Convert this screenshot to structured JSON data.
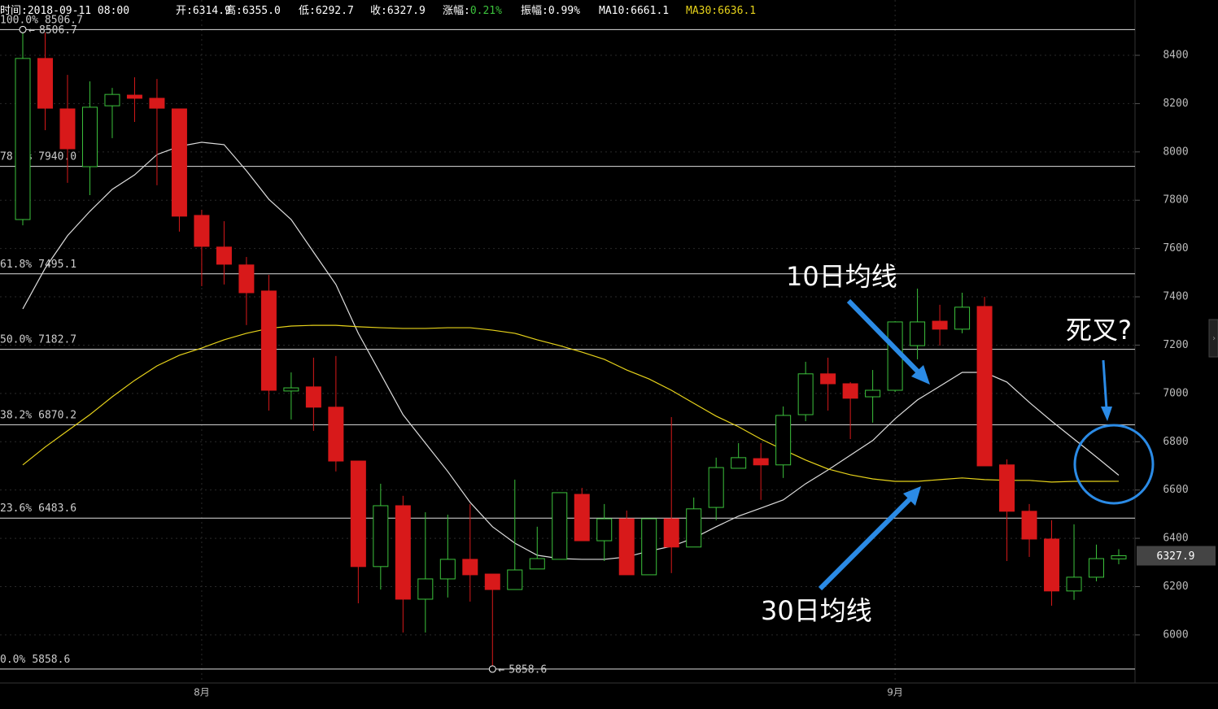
{
  "chart_data": {
    "type": "candlestick",
    "header": [
      {
        "label": "时间:",
        "value": "2018-09-11 08:00"
      },
      {
        "label": "开:",
        "value": "6314.9"
      },
      {
        "label": "高:",
        "value": "6355.0"
      },
      {
        "label": "低:",
        "value": "6292.7"
      },
      {
        "label": "收:",
        "value": "6327.9"
      },
      {
        "label": "涨幅:",
        "value": "0.21%"
      },
      {
        "label": "振幅:",
        "value": "0.99%"
      },
      {
        "label": "MA10:",
        "value": "6661.1"
      },
      {
        "label": "MA30:",
        "value": "6636.1"
      }
    ],
    "categories": [
      null,
      null,
      null,
      null,
      null,
      null,
      null,
      null,
      "8月",
      null,
      null,
      null,
      null,
      null,
      null,
      null,
      null,
      null,
      null,
      null,
      null,
      null,
      null,
      null,
      null,
      null,
      null,
      null,
      null,
      null,
      null,
      null,
      null,
      null,
      null,
      null,
      null,
      null,
      null,
      "9月",
      null,
      null,
      null,
      null,
      null,
      null,
      null,
      null,
      null,
      null
    ],
    "open": [
      7720,
      8387,
      8178,
      7939,
      8191,
      8235,
      8222,
      8178,
      7737,
      7606,
      7532,
      7424,
      7010,
      7027,
      6943,
      6720,
      6283,
      6535,
      6148,
      6232,
      6313,
      6252,
      6188,
      6273,
      6313,
      6582,
      6390,
      6481,
      6249,
      6481,
      6364,
      6528,
      6690,
      6730,
      6704,
      6912,
      7081,
      7040,
      6986,
      7013,
      7198,
      7299,
      7266,
      7360,
      6704,
      6512,
      6397,
      6182,
      6239,
      6314.9
    ],
    "high": [
      8506.7,
      8494,
      8319,
      8292,
      8265,
      8309,
      8302,
      8178,
      7760,
      7713,
      7565,
      7491,
      7087,
      7148,
      7155,
      6720,
      6626,
      6576,
      6508,
      6498,
      6542,
      6252,
      6643,
      6448,
      6589,
      6609,
      6542,
      6515,
      6481,
      6902,
      6569,
      6734,
      6794,
      6794,
      6946,
      7131,
      7148,
      7047,
      7097,
      7299,
      7434,
      7367,
      7417,
      7400,
      6727,
      6542,
      6475,
      6458,
      6374,
      6355.0
    ],
    "low": [
      7696,
      8090,
      7872,
      7821,
      8057,
      8124,
      7862,
      7670,
      7444,
      7451,
      7283,
      6929,
      6892,
      6845,
      6677,
      6131,
      6188,
      6010,
      6010,
      6155,
      6138,
      5858.6,
      6188,
      6273,
      6313,
      6390,
      6306,
      6249,
      6249,
      6256,
      6364,
      6475,
      6690,
      6559,
      6650,
      6885,
      6929,
      6811,
      6879,
      7006,
      7141,
      7198,
      7249,
      6700,
      6306,
      6323,
      6121,
      6145,
      6222,
      6292.7
    ],
    "close": [
      8387,
      8181,
      8013,
      8185,
      8238,
      8222,
      8181,
      7734,
      7609,
      7535,
      7417,
      7013,
      7023,
      6943,
      6720,
      6283,
      6535,
      6148,
      6232,
      6313,
      6249,
      6188,
      6269,
      6316,
      6589,
      6390,
      6481,
      6249,
      6481,
      6364,
      6522,
      6693,
      6734,
      6704,
      6909,
      7081,
      7040,
      6980,
      7013,
      7296,
      7296,
      7266,
      7357,
      6700,
      6512,
      6397,
      6182,
      6239,
      6316,
      6327.9
    ],
    "up_color": "#3cc23c",
    "down_color": "#d8191a",
    "lines": [
      {
        "color": "#dddddd",
        "values": [
          7350,
          7518,
          7653,
          7754,
          7845,
          7905,
          7989,
          8023,
          8040,
          8030,
          7922,
          7804,
          7720,
          7585,
          7451,
          7249,
          7081,
          6912,
          6794,
          6677,
          6549,
          6448,
          6380,
          6330,
          6316,
          6313,
          6313,
          6323,
          6347,
          6367,
          6401,
          6448,
          6492,
          6525,
          6559,
          6626,
          6683,
          6744,
          6805,
          6895,
          6973,
          7030,
          7087,
          7087,
          7047,
          6963,
          6885,
          6811,
          6737,
          6661.1
        ]
      },
      {
        "color": "#e6d21a",
        "values": [
          6704,
          6778,
          6845,
          6912,
          6986,
          7054,
          7114,
          7158,
          7188,
          7222,
          7249,
          7269,
          7279,
          7282,
          7282,
          7276,
          7272,
          7269,
          7269,
          7272,
          7272,
          7262,
          7249,
          7222,
          7198,
          7171,
          7141,
          7097,
          7060,
          7013,
          6959,
          6906,
          6862,
          6811,
          6767,
          6724,
          6687,
          6663,
          6646,
          6636,
          6636,
          6643,
          6650,
          6643,
          6640,
          6640,
          6633,
          6636,
          6636,
          6636.1
        ]
      }
    ],
    "fib": [
      {
        "ratio": "100.0%",
        "price": 8506.7
      },
      {
        "ratio": "78.6%",
        "price": 7940,
        "price_label": "7940.0"
      },
      {
        "ratio": "61.8%",
        "price": 7495.1
      },
      {
        "ratio": "50.0%",
        "price": 7182.7
      },
      {
        "ratio": "38.2%",
        "price": 6870.2
      },
      {
        "ratio": "23.6%",
        "price": 6483.6
      },
      {
        "ratio": "0.0%",
        "price": 5858.6
      }
    ],
    "max_marker": {
      "index": 0,
      "value": 8506.7
    },
    "min_marker": {
      "index": 21,
      "value": 5858.6
    },
    "last_price": 6327.9,
    "ylim": [
      5801,
      8629
    ],
    "yticks": [
      6000,
      6200,
      6400,
      6600,
      6800,
      7000,
      7200,
      7400,
      7600,
      7800,
      8000,
      8200,
      8400
    ],
    "annotations": [
      "10日均线",
      "30日均线",
      "死叉?"
    ]
  }
}
